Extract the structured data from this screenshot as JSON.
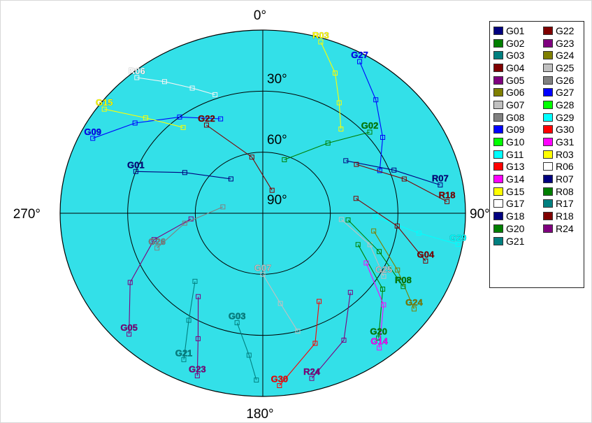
{
  "chart_data": {
    "type": "scatter",
    "projection": "polar-skyplot",
    "background_color": "#33e0e8",
    "radial_range": [
      0,
      90
    ],
    "rings": [
      30,
      60
    ],
    "ring_labels": [
      "30°",
      "60°",
      "90°"
    ],
    "azimuth_labels": {
      "north": "0°",
      "east": "90°",
      "south": "180°",
      "west": "270°"
    },
    "legend_position": "right",
    "legend": [
      {
        "name": "G01",
        "color": "#00007f"
      },
      {
        "name": "G02",
        "color": "#007f00"
      },
      {
        "name": "G03",
        "color": "#007f7f"
      },
      {
        "name": "G04",
        "color": "#7f0000"
      },
      {
        "name": "G05",
        "color": "#7f007f"
      },
      {
        "name": "G06",
        "color": "#7f7f00"
      },
      {
        "name": "G07",
        "color": "#c0c0c0"
      },
      {
        "name": "G08",
        "color": "#808080"
      },
      {
        "name": "G09",
        "color": "#0000ff"
      },
      {
        "name": "G10",
        "color": "#00ff00"
      },
      {
        "name": "G11",
        "color": "#00ffff"
      },
      {
        "name": "G13",
        "color": "#ff0000"
      },
      {
        "name": "G14",
        "color": "#ff00ff"
      },
      {
        "name": "G15",
        "color": "#ffff00"
      },
      {
        "name": "G17",
        "color": "#ffffff"
      },
      {
        "name": "G18",
        "color": "#00007f"
      },
      {
        "name": "G20",
        "color": "#007f00"
      },
      {
        "name": "G21",
        "color": "#007f7f"
      },
      {
        "name": "G22",
        "color": "#7f0000"
      },
      {
        "name": "G23",
        "color": "#7f007f"
      },
      {
        "name": "G24",
        "color": "#7f7f00"
      },
      {
        "name": "G25",
        "color": "#c0c0c0"
      },
      {
        "name": "G26",
        "color": "#808080"
      },
      {
        "name": "G27",
        "color": "#0000ff"
      },
      {
        "name": "G28",
        "color": "#00ff00"
      },
      {
        "name": "G29",
        "color": "#00ffff"
      },
      {
        "name": "G30",
        "color": "#ff0000"
      },
      {
        "name": "G31",
        "color": "#ff00ff"
      },
      {
        "name": "R03",
        "color": "#ffff00"
      },
      {
        "name": "R06",
        "color": "#ffffff"
      },
      {
        "name": "R07",
        "color": "#00007f"
      },
      {
        "name": "R08",
        "color": "#007f00"
      },
      {
        "name": "R17",
        "color": "#007f7f"
      },
      {
        "name": "R18",
        "color": "#7f0000"
      },
      {
        "name": "R24",
        "color": "#7f007f"
      }
    ],
    "series": [
      {
        "name": "R06",
        "color": "#ffffff",
        "points": [
          {
            "az": 320,
            "el": 3
          },
          {
            "az": 326,
            "el": 12
          },
          {
            "az": 333,
            "el": 21
          },
          {
            "az": 340,
            "el": 28
          }
        ]
      },
      {
        "name": "R03",
        "color": "#ffff00",
        "points": [
          {
            "az": 17,
            "el": 2
          },
          {
            "az": 25,
            "el": 14
          },
          {
            "az": 32,
            "el": 26
          },
          {
            "az": 40,
            "el": 36
          }
        ]
      },
      {
        "name": "G27",
        "color": "#0000ff",
        "points": [
          {
            "az": 30,
            "el": 4
          },
          {
            "az": 42,
            "el": 15
          },
          {
            "az": 55,
            "el": 25
          },
          {
            "az": 68,
            "el": 34
          }
        ]
      },
      {
        "name": "G09",
        "color": "#0000ff",
        "points": [
          {
            "az": 296,
            "el": 6
          },
          {
            "az": 308,
            "el": 18
          },
          {
            "az": 322,
            "el": 30
          },
          {
            "az": 338,
            "el": 40
          }
        ]
      },
      {
        "name": "G15",
        "color": "#ffff00",
        "points": [
          {
            "az": 306,
            "el": 3
          },
          {
            "az": 312,
            "el": 20
          },
          {
            "az": 320,
            "el": 35
          }
        ]
      },
      {
        "name": "G01",
        "color": "#00007f",
        "points": [
          {
            "az": 290,
            "el": 30
          },
          {
            "az": 300,
            "el": 50
          },
          {
            "az": 320,
            "el": 68
          }
        ]
      },
      {
        "name": "G22",
        "color": "#7f0000",
        "points": [
          {
            "az": 330,
            "el": 40
          },
          {
            "az": 350,
            "el": 62
          },
          {
            "az": 20,
            "el": 78
          }
        ]
      },
      {
        "name": "G05",
        "color": "#7f007f",
        "points": [
          {
            "az": 225,
            "el": 6
          },
          {
            "az": 240,
            "el": 22
          },
          {
            "az": 255,
            "el": 40
          },
          {
            "az": 265,
            "el": 58
          }
        ]
      },
      {
        "name": "G26",
        "color": "#808080",
        "points": [
          {
            "az": 250,
            "el": 40
          },
          {
            "az": 262,
            "el": 55
          },
          {
            "az": 280,
            "el": 72
          }
        ]
      },
      {
        "name": "G07",
        "color": "#c0c0c0",
        "points": [
          {
            "az": 180,
            "el": 60
          },
          {
            "az": 170,
            "el": 45
          },
          {
            "az": 165,
            "el": 30
          }
        ]
      },
      {
        "name": "G03",
        "color": "#007f7f",
        "points": [
          {
            "az": 192,
            "el": 35
          },
          {
            "az": 185,
            "el": 20
          },
          {
            "az": 182,
            "el": 8
          }
        ]
      },
      {
        "name": "G21",
        "color": "#007f7f",
        "points": [
          {
            "az": 206,
            "el": 10
          },
          {
            "az": 212,
            "el": 28
          },
          {
            "az": 222,
            "el": 45
          }
        ]
      },
      {
        "name": "G30",
        "color": "#ff0000",
        "points": [
          {
            "az": 175,
            "el": 5
          },
          {
            "az": 160,
            "el": 22
          },
          {
            "az": 150,
            "el": 40
          }
        ]
      },
      {
        "name": "R24",
        "color": "#7f007f",
        "points": [
          {
            "az": 165,
            "el": 6
          },
          {
            "az": 150,
            "el": 18
          },
          {
            "az": 135,
            "el": 35
          }
        ]
      },
      {
        "name": "G20",
        "color": "#007f00",
        "points": [
          {
            "az": 140,
            "el": 10
          },
          {
            "az": 125,
            "el": 25
          },
          {
            "az": 110,
            "el": 45
          }
        ]
      },
      {
        "name": "G14",
        "color": "#ff00ff",
        "points": [
          {
            "az": 142,
            "el": 6
          },
          {
            "az": 130,
            "el": 20
          },
          {
            "az": 118,
            "el": 38
          }
        ]
      },
      {
        "name": "G24",
        "color": "#7f7f00",
        "points": [
          {
            "az": 125,
            "el": 8
          },
          {
            "az": 115,
            "el": 24
          },
          {
            "az": 100,
            "el": 40
          }
        ]
      },
      {
        "name": "G25",
        "color": "#c0c0c0",
        "points": [
          {
            "az": 120,
            "el": 28
          },
          {
            "az": 108,
            "el": 40
          },
          {
            "az": 95,
            "el": 55
          }
        ]
      },
      {
        "name": "G29",
        "color": "#00ffff",
        "points": [
          {
            "az": 100,
            "el": 2
          },
          {
            "az": 98,
            "el": 20
          },
          {
            "az": 92,
            "el": 40
          }
        ]
      },
      {
        "name": "G04",
        "color": "#7f0000",
        "points": [
          {
            "az": 108,
            "el": 14
          },
          {
            "az": 96,
            "el": 30
          },
          {
            "az": 80,
            "el": 48
          }
        ]
      },
      {
        "name": "R07",
        "color": "#00007f",
        "points": [
          {
            "az": 80,
            "el": 10
          },
          {
            "az": 70,
            "el": 28
          },
          {
            "az": 55,
            "el": 45
          }
        ]
      },
      {
        "name": "R18",
        "color": "#7f0000",
        "points": [
          {
            "az": 86,
            "el": 8
          },
          {
            "az": 75,
            "el": 25
          },
          {
            "az": 60,
            "el": 42
          }
        ]
      },
      {
        "name": "R08",
        "color": "#007f00",
        "points": [
          {
            "az": 120,
            "el": 18
          },
          {
            "az": 110,
            "el": 35
          },
          {
            "az": 95,
            "el": 52
          }
        ]
      },
      {
        "name": "G02",
        "color": "#007f00",
        "points": [
          {
            "az": 50,
            "el": 28
          },
          {
            "az": 40,
            "el": 45
          },
          {
            "az": 20,
            "el": 62
          }
        ]
      },
      {
        "name": "G23",
        "color": "#7f007f",
        "points": [
          {
            "az": 200,
            "el": 5
          },
          {
            "az": 205,
            "el": 22
          },
          {
            "az": 215,
            "el": 40
          }
        ]
      }
    ]
  }
}
